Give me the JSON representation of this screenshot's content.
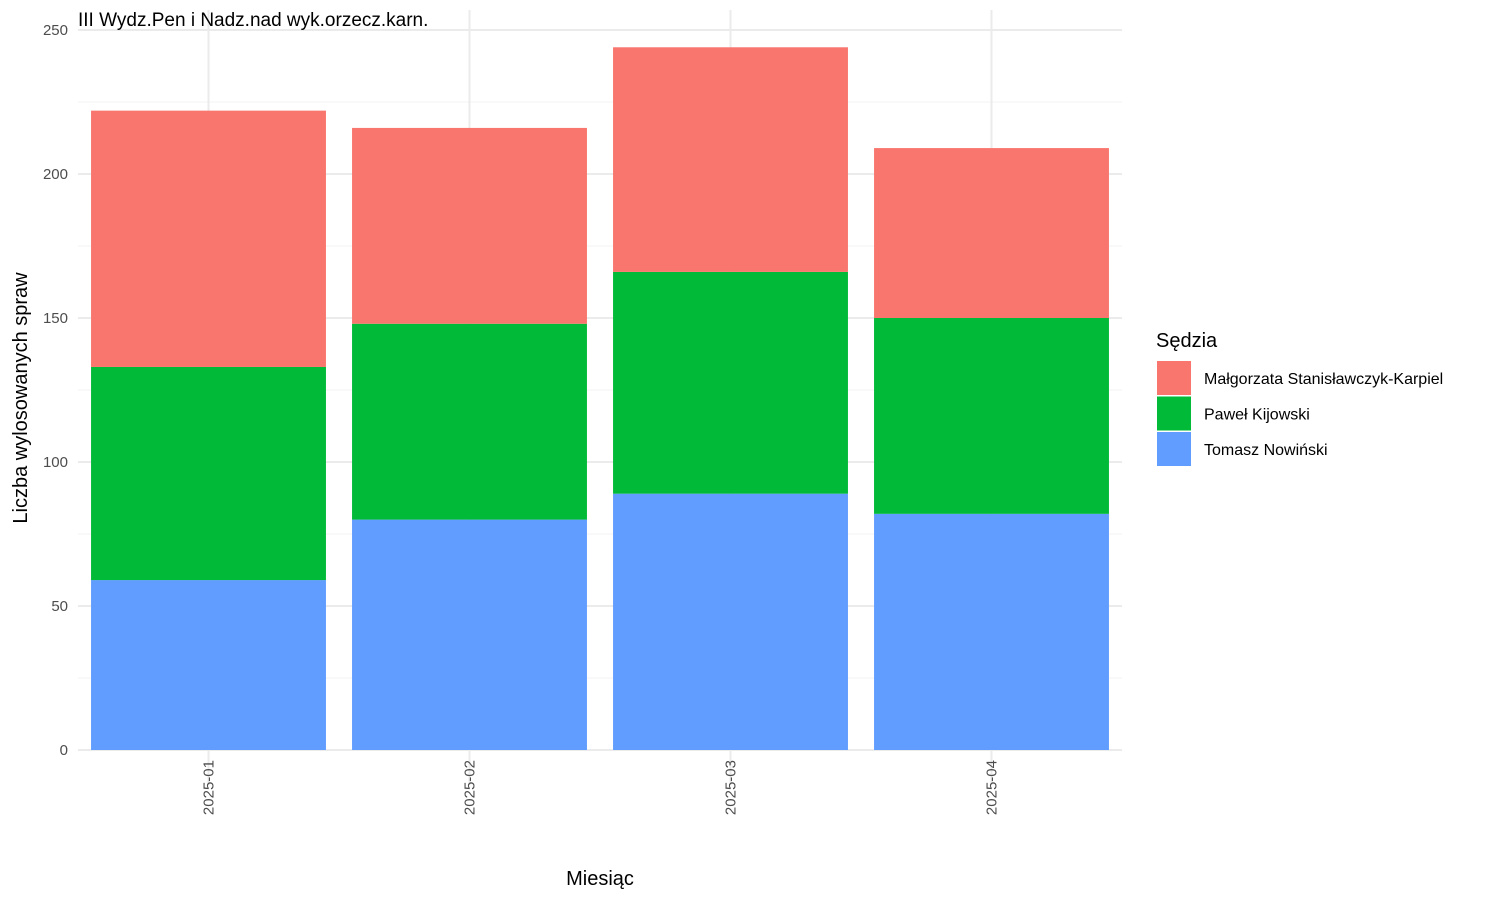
{
  "chart_data": {
    "type": "bar",
    "stacked": true,
    "title": "III Wydz.Pen i Nadz.nad wyk.orzecz.karn.",
    "xlabel": "Miesiąc",
    "ylabel": "Liczba wylosowanych spraw",
    "categories": [
      "2025-01",
      "2025-02",
      "2025-03",
      "2025-04"
    ],
    "ylim": [
      0,
      250
    ],
    "yticks": [
      0,
      50,
      100,
      150,
      200,
      250
    ],
    "series": [
      {
        "name": "Tomasz Nowiński",
        "color": "#619CFF",
        "values": [
          59,
          80,
          89,
          82
        ]
      },
      {
        "name": "Paweł Kijowski",
        "color": "#00BA38",
        "values": [
          74,
          68,
          77,
          68
        ]
      },
      {
        "name": "Małgorzata Stanisławczyk-Karpiel",
        "color": "#F8766D",
        "values": [
          89,
          68,
          78,
          59
        ]
      }
    ],
    "legend": {
      "title": "Sędzia",
      "position": "right",
      "order": [
        "Małgorzata Stanisławczyk-Karpiel",
        "Paweł Kijowski",
        "Tomasz Nowiński"
      ]
    },
    "grid": true
  }
}
